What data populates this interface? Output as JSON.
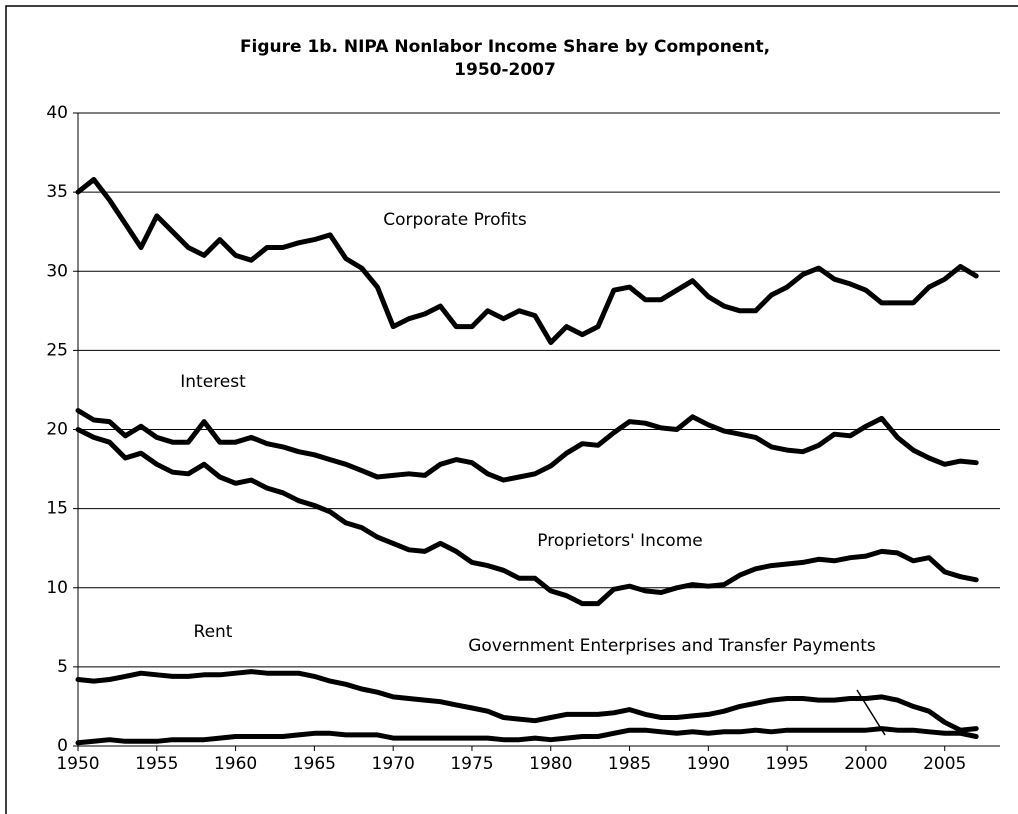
{
  "chart_data": {
    "type": "line",
    "title": "Figure 1b. NIPA Nonlabor Income Share by Component,",
    "subtitle": "1950-2007",
    "x": [
      1950,
      1951,
      1952,
      1953,
      1954,
      1955,
      1956,
      1957,
      1958,
      1959,
      1960,
      1961,
      1962,
      1963,
      1964,
      1965,
      1966,
      1967,
      1968,
      1969,
      1970,
      1971,
      1972,
      1973,
      1974,
      1975,
      1976,
      1977,
      1978,
      1979,
      1980,
      1981,
      1982,
      1983,
      1984,
      1985,
      1986,
      1987,
      1988,
      1989,
      1990,
      1991,
      1992,
      1993,
      1994,
      1995,
      1996,
      1997,
      1998,
      1999,
      2000,
      2001,
      2002,
      2003,
      2004,
      2005,
      2006,
      2007
    ],
    "series": [
      {
        "name": "Corporate Profits",
        "color": "#000000",
        "values": [
          35,
          35.8,
          34.5,
          33,
          31.5,
          33.5,
          32.5,
          31.5,
          31,
          32,
          31,
          30.7,
          31.5,
          31.5,
          31.8,
          32,
          32.3,
          30.8,
          30.2,
          29,
          26.5,
          27,
          27.3,
          27.8,
          26.5,
          26.5,
          27.5,
          27,
          27.5,
          27.2,
          25.5,
          26.5,
          26,
          26.5,
          28.8,
          29,
          28.2,
          28.2,
          28.8,
          29.4,
          28.4,
          27.8,
          27.5,
          27.5,
          28.5,
          29,
          29.8,
          30.2,
          29.5,
          29.2,
          28.8,
          28,
          28,
          28,
          29,
          29.5,
          30.3,
          29.7
        ]
      },
      {
        "name": "Interest",
        "color": "#000000",
        "values": [
          21.2,
          20.6,
          20.5,
          19.6,
          20.2,
          19.5,
          19.2,
          19.2,
          20.5,
          19.2,
          19.2,
          19.5,
          19.1,
          18.9,
          18.6,
          18.4,
          18.1,
          17.8,
          17.4,
          17,
          17.1,
          17.2,
          17.1,
          17.8,
          18.1,
          17.9,
          17.2,
          16.8,
          17,
          17.2,
          17.7,
          18.5,
          19.1,
          19,
          19.8,
          20.5,
          20.4,
          20.1,
          20,
          20.8,
          20.3,
          19.9,
          19.7,
          19.5,
          18.9,
          18.7,
          18.6,
          19,
          19.7,
          19.6,
          20.2,
          20.7,
          19.5,
          18.7,
          18.2,
          17.8,
          18,
          17.9
        ]
      },
      {
        "name": "Proprietors' Income",
        "color": "#000000",
        "values": [
          20,
          19.5,
          19.2,
          18.2,
          18.5,
          17.8,
          17.3,
          17.2,
          17.8,
          17,
          16.6,
          16.8,
          16.3,
          16,
          15.5,
          15.2,
          14.8,
          14.1,
          13.8,
          13.2,
          12.8,
          12.4,
          12.3,
          12.8,
          12.3,
          11.6,
          11.4,
          11.1,
          10.6,
          10.6,
          9.8,
          9.5,
          9,
          9,
          9.9,
          10.1,
          9.8,
          9.7,
          10,
          10.2,
          10.1,
          10.2,
          10.8,
          11.2,
          11.4,
          11.5,
          11.6,
          11.8,
          11.7,
          11.9,
          12,
          12.3,
          12.2,
          11.7,
          11.9,
          11,
          10.7,
          10.5
        ]
      },
      {
        "name": "Rent",
        "color": "#000000",
        "values": [
          4.2,
          4.1,
          4.2,
          4.4,
          4.6,
          4.5,
          4.4,
          4.4,
          4.5,
          4.5,
          4.6,
          4.7,
          4.6,
          4.6,
          4.6,
          4.4,
          4.1,
          3.9,
          3.6,
          3.4,
          3.1,
          3,
          2.9,
          2.8,
          2.6,
          2.4,
          2.2,
          1.8,
          1.7,
          1.6,
          1.8,
          2,
          2,
          2,
          2.1,
          2.3,
          2,
          1.8,
          1.8,
          1.9,
          2,
          2.2,
          2.5,
          2.7,
          2.9,
          3,
          3,
          2.9,
          2.9,
          3,
          3,
          3.1,
          2.9,
          2.5,
          2.2,
          1.5,
          1,
          1.1
        ]
      },
      {
        "name": "Government Enterprises and Transfer Payments",
        "color": "#000000",
        "values": [
          0.2,
          0.3,
          0.4,
          0.3,
          0.3,
          0.3,
          0.4,
          0.4,
          0.4,
          0.5,
          0.6,
          0.6,
          0.6,
          0.6,
          0.7,
          0.8,
          0.8,
          0.7,
          0.7,
          0.7,
          0.5,
          0.5,
          0.5,
          0.5,
          0.5,
          0.5,
          0.5,
          0.4,
          0.4,
          0.5,
          0.4,
          0.5,
          0.6,
          0.6,
          0.8,
          1,
          1,
          0.9,
          0.8,
          0.9,
          0.8,
          0.9,
          0.9,
          1,
          0.9,
          1,
          1,
          1,
          1,
          1,
          1,
          1.1,
          1,
          1,
          0.9,
          0.8,
          0.8,
          0.6
        ]
      }
    ],
    "xlim": [
      1950,
      2008
    ],
    "ylim": [
      0,
      40
    ],
    "xticks": [
      1950,
      1955,
      1960,
      1965,
      1970,
      1975,
      1980,
      1985,
      1990,
      1995,
      2000,
      2005
    ],
    "yticks": [
      0,
      5,
      10,
      15,
      20,
      25,
      30,
      35,
      40
    ],
    "grid": true
  }
}
